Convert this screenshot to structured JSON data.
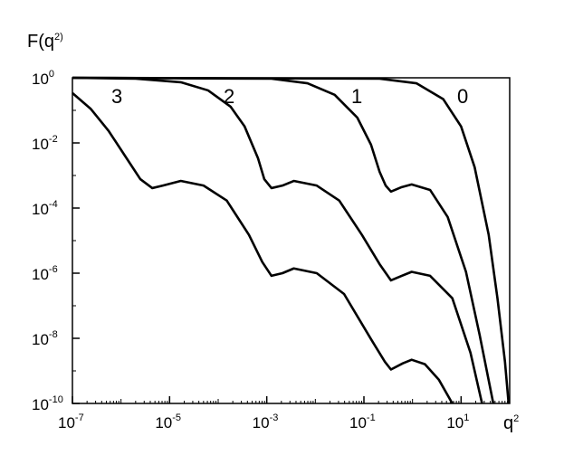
{
  "chart_data": {
    "type": "line",
    "y_label": "F(q^2)",
    "x_label": "q^2",
    "log_x": true,
    "log_y": true,
    "xlim": [
      1e-07,
      100
    ],
    "ylim": [
      1e-10,
      1
    ],
    "xticks": [
      {
        "value": 1e-07,
        "label": "10^-7"
      },
      {
        "value": 1e-05,
        "label": "10^-5"
      },
      {
        "value": 0.001,
        "label": "10^-3"
      },
      {
        "value": 0.1,
        "label": "10^-1"
      },
      {
        "value": 10,
        "label": "10^1"
      }
    ],
    "yticks": [
      {
        "value": 1,
        "label": "10^0"
      },
      {
        "value": 0.01,
        "label": "10^-2"
      },
      {
        "value": 0.0001,
        "label": "10^-4"
      },
      {
        "value": 1e-06,
        "label": "10^-6"
      },
      {
        "value": 1e-08,
        "label": "10^-8"
      },
      {
        "value": 1e-10,
        "label": "10^-10"
      }
    ],
    "series": [
      {
        "name": "0",
        "color": "#000000",
        "x": [
          1e-07,
          0.21,
          1.2,
          4.3,
          10,
          19,
          37,
          56,
          80,
          95
        ],
        "values": [
          1,
          0.94,
          0.68,
          0.22,
          0.032,
          0.0018,
          1.5e-05,
          1.7e-07,
          1.9e-09,
          1e-10
        ]
      },
      {
        "name": "1",
        "color": "#000000",
        "x": [
          1e-07,
          0.00125,
          0.0069,
          0.025,
          0.073,
          0.14,
          0.21,
          0.28,
          0.36,
          0.6,
          0.96,
          2.3,
          5.3,
          12.6,
          24,
          46
        ],
        "values": [
          1,
          0.94,
          0.68,
          0.3,
          0.06,
          0.0088,
          0.0013,
          0.00049,
          0.00032,
          0.00044,
          0.00053,
          0.00036,
          5.3e-05,
          1.1e-06,
          1.3e-08,
          1e-10
        ]
      },
      {
        "name": "2",
        "color": "#000000",
        "x": [
          1e-07,
          2e-06,
          1.7e-05,
          6.2e-05,
          0.00018,
          0.00035,
          0.00066,
          0.00089,
          0.00125,
          0.0021,
          0.0036,
          0.0107,
          0.031,
          0.091,
          0.21,
          0.36,
          0.6,
          0.96,
          2.3,
          6.6,
          15.6,
          27
        ],
        "values": [
          1,
          0.94,
          0.73,
          0.41,
          0.13,
          0.032,
          0.0034,
          0.00077,
          0.00041,
          0.00049,
          0.00068,
          0.00049,
          0.00017,
          1.5e-05,
          1.9e-06,
          6e-07,
          8.3e-07,
          1.1e-06,
          8.3e-07,
          1.7e-07,
          3.6e-09,
          1e-10
        ]
      },
      {
        "name": "3",
        "color": "#000000",
        "x": [
          1e-07,
          2.4e-07,
          5.6e-07,
          1.3e-06,
          2.5e-06,
          4.4e-06,
          7.3e-06,
          1.7e-05,
          5e-05,
          0.00015,
          0.00043,
          0.00081,
          0.00125,
          0.0021,
          0.0036,
          0.0107,
          0.039,
          0.14,
          0.27,
          0.36,
          0.63,
          0.96,
          1.8,
          3.5,
          6.6
        ],
        "values": [
          0.34,
          0.11,
          0.023,
          0.0034,
          0.00077,
          0.00041,
          0.00049,
          0.00068,
          0.00049,
          0.00017,
          1.5e-05,
          2.2e-06,
          8.3e-07,
          1e-06,
          1.4e-06,
          1e-06,
          2.3e-07,
          9.4e-09,
          1.9e-09,
          1.1e-09,
          1.7e-09,
          2.2e-09,
          1.6e-09,
          5.3e-10,
          1e-10
        ]
      }
    ]
  }
}
